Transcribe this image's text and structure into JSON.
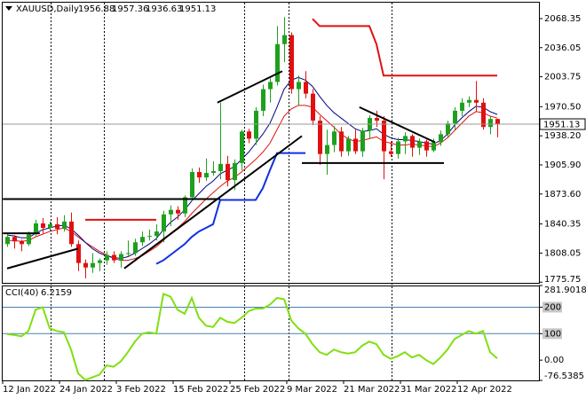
{
  "chart_data": [
    {
      "type": "candlestick",
      "title": "XAUUSD,Daily",
      "categories": [
        "12 Jan 2022",
        null,
        null,
        null,
        null,
        null,
        null,
        null,
        "24 Jan 2022",
        null,
        null,
        null,
        null,
        null,
        null,
        null,
        "3 Feb 2022",
        null,
        null,
        null,
        null,
        null,
        null,
        null,
        "15 Feb 2022",
        null,
        null,
        null,
        null,
        null,
        null,
        null,
        "25 Feb 2022",
        null,
        null,
        null,
        null,
        null,
        null,
        null,
        "9 Mar 2022",
        null,
        null,
        null,
        null,
        null,
        null,
        null,
        "21 Mar 2022",
        null,
        null,
        null,
        null,
        null,
        null,
        null,
        "31 Mar 2022",
        null,
        null,
        null,
        null,
        null,
        null,
        null,
        "12 Apr 2022",
        null,
        null,
        null,
        null,
        null
      ],
      "open": [
        1818,
        1826,
        1821,
        1818,
        1829,
        1841,
        1836,
        1840,
        1835,
        1843,
        1818,
        1797,
        1792,
        1797,
        1800,
        1806,
        1800,
        1807,
        1808,
        1820,
        1826,
        1827,
        1832,
        1851,
        1856,
        1852,
        1870,
        1898,
        1892,
        1897,
        1899,
        1907,
        1889,
        1908,
        1943,
        1935,
        1966,
        1990,
        1998,
        2040,
        2050,
        1990,
        1998,
        1985,
        1955,
        1918,
        1928,
        1943,
        1921,
        1935,
        1921,
        1944,
        1958,
        1955,
        1921,
        1918,
        1932,
        1938,
        1925,
        1932,
        1922,
        1931,
        1940,
        1952,
        1966,
        1975,
        1978,
        1975,
        1948,
        1956.88
      ],
      "high": [
        1830,
        1828,
        1823,
        1832,
        1845,
        1847,
        1843,
        1848,
        1850,
        1853,
        1822,
        1801,
        1808,
        1802,
        1810,
        1810,
        1810,
        1822,
        1824,
        1832,
        1834,
        1840,
        1855,
        1861,
        1860,
        1872,
        1902,
        1903,
        1913,
        1910,
        1975,
        1916,
        1912,
        1945,
        1946,
        1970,
        1995,
        2002,
        2060,
        2070,
        2053,
        2005,
        2010,
        1990,
        1960,
        1945,
        1949,
        1948,
        1938,
        1945,
        1947,
        1961,
        1966,
        1960,
        1932,
        1936,
        1942,
        1940,
        1935,
        1934,
        1935,
        1944,
        1955,
        1970,
        1980,
        1982,
        1999,
        1980,
        1960,
        1957.36
      ],
      "low": [
        1815,
        1813,
        1810,
        1816,
        1826,
        1830,
        1832,
        1829,
        1832,
        1815,
        1788,
        1780,
        1786,
        1788,
        1795,
        1797,
        1792,
        1805,
        1805,
        1816,
        1822,
        1822,
        1820,
        1838,
        1845,
        1848,
        1866,
        1886,
        1888,
        1894,
        1890,
        1882,
        1878,
        1900,
        1930,
        1928,
        1960,
        1975,
        1994,
        2020,
        1985,
        1972,
        1980,
        1950,
        1906,
        1895,
        1920,
        1915,
        1916,
        1918,
        1915,
        1935,
        1948,
        1890,
        1915,
        1913,
        1918,
        1915,
        1917,
        1915,
        1920,
        1927,
        1936,
        1945,
        1960,
        1970,
        1965,
        1945,
        1940,
        1936.63
      ],
      "close": [
        1826,
        1821,
        1818,
        1829,
        1841,
        1836,
        1840,
        1835,
        1843,
        1818,
        1797,
        1792,
        1797,
        1800,
        1806,
        1800,
        1807,
        1808,
        1820,
        1826,
        1827,
        1832,
        1851,
        1856,
        1852,
        1870,
        1898,
        1892,
        1897,
        1899,
        1907,
        1889,
        1908,
        1943,
        1935,
        1966,
        1990,
        1998,
        2040,
        2050,
        1990,
        1998,
        1985,
        1955,
        1918,
        1928,
        1943,
        1921,
        1935,
        1921,
        1944,
        1958,
        1955,
        1921,
        1918,
        1932,
        1938,
        1925,
        1932,
        1922,
        1931,
        1940,
        1952,
        1966,
        1975,
        1978,
        1975,
        1948,
        1956.88,
        1951.13
      ],
      "bull_color": "#1ea01e",
      "bear_color": "#e01010",
      "series": [
        {
          "color": "#e01010",
          "line_width": 1,
          "values": [
            1822,
            1822,
            1821,
            1822,
            1826,
            1829,
            1832,
            1834,
            1836,
            1832,
            1826,
            1820,
            1815,
            1810,
            1806,
            1802,
            1800,
            1800,
            1802,
            1805,
            1810,
            1815,
            1822,
            1830,
            1836,
            1843,
            1852,
            1860,
            1868,
            1875,
            1882,
            1888,
            1892,
            1898,
            1905,
            1912,
            1920,
            1930,
            1945,
            1960,
            1968,
            1972,
            1972,
            1970,
            1962,
            1955,
            1948,
            1940,
            1935,
            1932,
            1933,
            1935,
            1937,
            1932,
            1930,
            1928,
            1928,
            1929,
            1928,
            1927,
            1926,
            1930,
            1936,
            1944,
            1952,
            1960,
            1965,
            1964,
            1960,
            1958
          ]
        },
        {
          "color": "#000080",
          "line_width": 1,
          "values": [
            1828,
            1827,
            1825,
            1825,
            1830,
            1834,
            1836,
            1838,
            1839,
            1835,
            1828,
            1820,
            1813,
            1808,
            1805,
            1803,
            1802,
            1804,
            1808,
            1813,
            1818,
            1824,
            1834,
            1842,
            1848,
            1856,
            1866,
            1874,
            1882,
            1888,
            1896,
            1900,
            1904,
            1912,
            1920,
            1930,
            1940,
            1952,
            1970,
            1990,
            2000,
            2003,
            2000,
            1993,
            1982,
            1972,
            1964,
            1958,
            1952,
            1946,
            1943,
            1944,
            1946,
            1940,
            1936,
            1934,
            1934,
            1933,
            1932,
            1930,
            1929,
            1933,
            1940,
            1950,
            1958,
            1965,
            1971,
            1970,
            1965,
            1962
          ]
        },
        {
          "color": "#1030e0",
          "line_width": 2,
          "values": [
            null,
            null,
            null,
            null,
            null,
            null,
            null,
            null,
            null,
            null,
            null,
            null,
            null,
            null,
            null,
            null,
            null,
            null,
            null,
            null,
            null,
            1796,
            1800,
            1806,
            1812,
            1818,
            1826,
            1832,
            1836,
            1840,
            1867,
            1867,
            1867,
            1867,
            1867,
            1867,
            1880,
            1900,
            1919,
            1919,
            1919,
            1919,
            1919,
            null,
            null,
            null,
            null,
            null,
            null,
            null,
            null,
            null,
            null,
            null,
            null,
            null,
            null,
            null,
            null,
            null,
            null,
            null,
            null,
            null,
            null,
            null,
            null,
            null,
            null,
            null
          ]
        },
        {
          "color": "#e01010",
          "line_width": 2,
          "values": [
            null,
            null,
            null,
            null,
            null,
            null,
            null,
            null,
            null,
            null,
            null,
            1845,
            1845,
            1845,
            1845,
            1845,
            1845,
            1845,
            1845,
            1845,
            1845,
            1845,
            null,
            null,
            null,
            null,
            null,
            null,
            null,
            null,
            null,
            null,
            null,
            null,
            null,
            null,
            null,
            null,
            null,
            null,
            null,
            null,
            null,
            2068,
            2060,
            2060,
            2060,
            2060,
            2060,
            2060,
            2060,
            2060,
            2040,
            2005,
            2005,
            2005,
            2005,
            2005,
            2005,
            2005,
            2005,
            2005,
            2005,
            2005,
            2005,
            2005,
            2005,
            2005,
            2005,
            2005
          ]
        }
      ],
      "trendlines": [
        {
          "color": "#000000",
          "from": [
            0,
            1791
          ],
          "to": [
            10,
            1813
          ]
        },
        {
          "color": "#000000",
          "from": [
            16.5,
            1791
          ],
          "to": [
            41.5,
            1938
          ]
        },
        {
          "color": "#000000",
          "from": [
            29.6,
            1975
          ],
          "to": [
            38.75,
            2010
          ]
        },
        {
          "color": "#000000",
          "from": [
            49.6,
            1970
          ],
          "to": [
            60.25,
            1931
          ]
        },
        {
          "color": "#000000",
          "from": [
            -0.6,
            1868
          ],
          "to": [
            30,
            1868
          ]
        },
        {
          "color": "#000000",
          "from": [
            -0.6,
            1830
          ],
          "to": [
            4.6,
            1830
          ]
        },
        {
          "color": "#000000",
          "from": [
            41.5,
            1908
          ],
          "to": [
            61.5,
            1908
          ]
        }
      ],
      "ylim": [
        1774,
        2086
      ],
      "yticks": [
        2068.35,
        2036.05,
        2003.75,
        {
          "value": 1970.5,
          "label": "1970.50"
        },
        {
          "value": 1938.2,
          "label": "1938.20"
        },
        {
          "value": 1905.9,
          "label": "1905.90"
        },
        {
          "value": 1873.6,
          "label": "1873.60"
        },
        1840.35,
        1808.05,
        1775.75
      ],
      "grid": false
    },
    {
      "type": "line",
      "title": "CCI(40)",
      "series": [
        {
          "color": "#80e010",
          "line_width": 2,
          "values": [
            98,
            95,
            90,
            110,
            190,
            200,
            120,
            110,
            105,
            40,
            -50,
            -75,
            -65,
            -55,
            -20,
            -25,
            -5,
            30,
            70,
            100,
            105,
            100,
            250,
            240,
            190,
            175,
            235,
            160,
            130,
            125,
            160,
            145,
            140,
            160,
            185,
            195,
            195,
            210,
            235,
            230,
            150,
            120,
            100,
            60,
            30,
            20,
            40,
            30,
            25,
            30,
            55,
            70,
            60,
            20,
            5,
            15,
            30,
            10,
            20,
            0,
            -15,
            10,
            40,
            80,
            95,
            110,
            100,
            110,
            30,
            6.2159
          ]
        }
      ],
      "levels": [
        200,
        100
      ],
      "level_color": "#4682b4",
      "ylim": [
        -76.5385,
        281.9018
      ],
      "yticks": [
        281.9018,
        200,
        100,
        {
          "value": 0,
          "label": "0.00"
        },
        -76.5385
      ]
    }
  ]
}
